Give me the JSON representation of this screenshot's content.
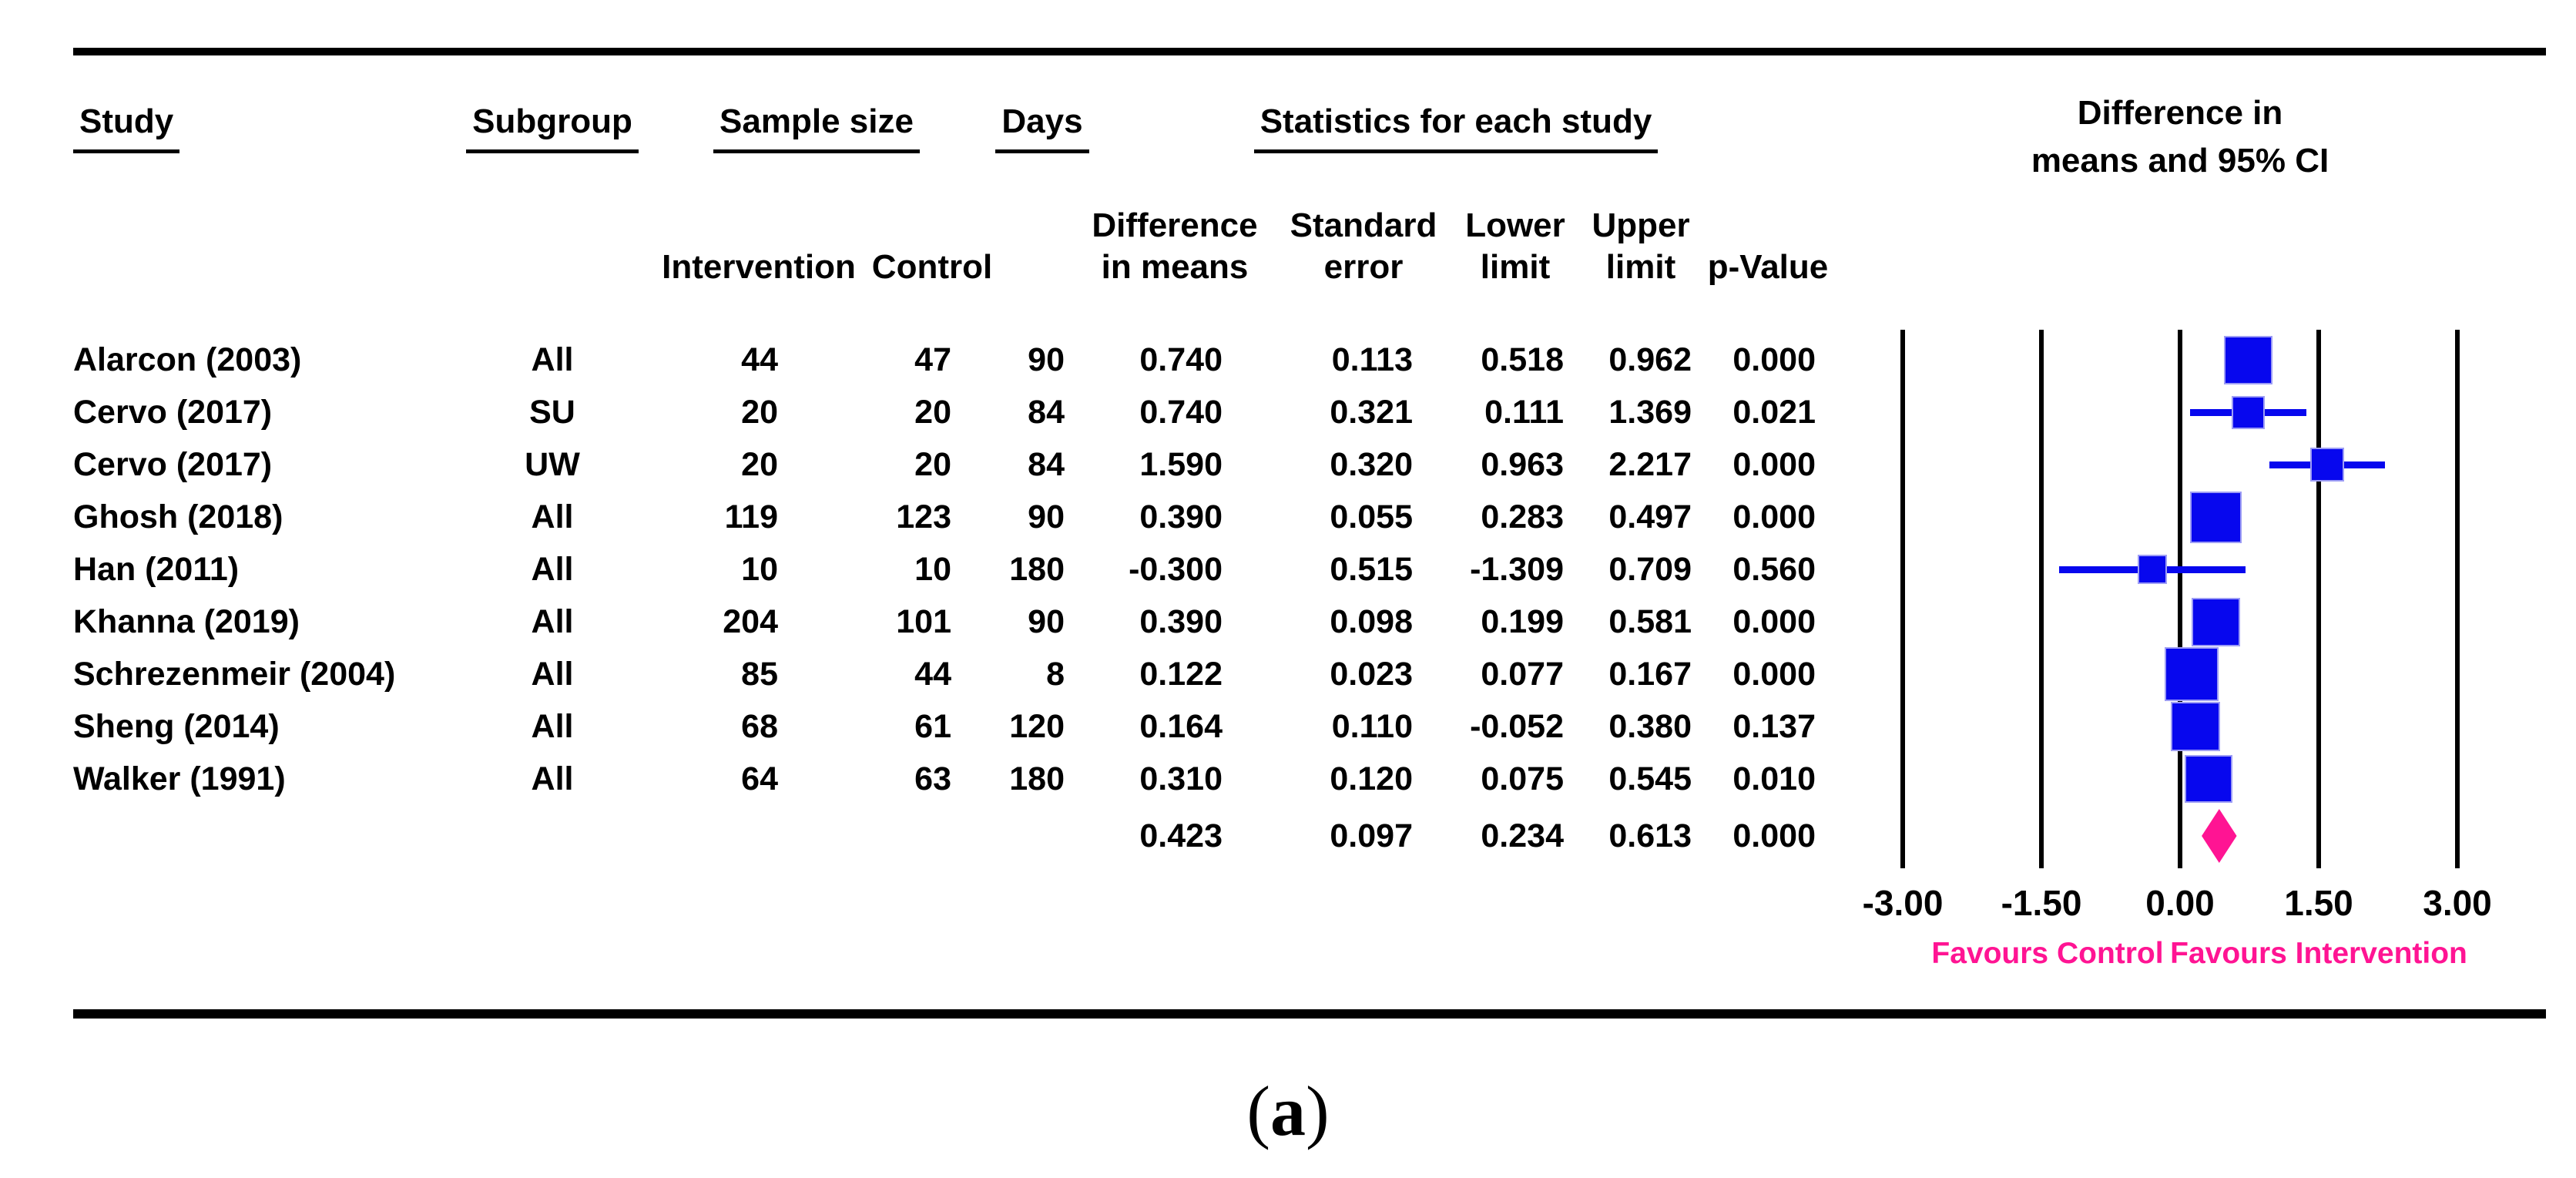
{
  "header": {
    "study": "Study",
    "subgroup": "Subgroup",
    "sample_size": "Sample size",
    "days": "Days",
    "statistics": "Statistics for each study",
    "plot_title_line1": "Difference in",
    "plot_title_line2": "means and 95% CI",
    "col_intervention": "Intervention",
    "col_control": "Control",
    "col_diff_line1": "Difference",
    "col_diff_line2": "in means",
    "col_se_line1": "Standard",
    "col_se_line2": "error",
    "col_lower_line1": "Lower",
    "col_lower_line2": "limit",
    "col_upper_line1": "Upper",
    "col_upper_line2": "limit",
    "col_p": "p-Value"
  },
  "chart_data": {
    "type": "forest",
    "title": "Difference in means and 95% CI",
    "x_axis": {
      "min": -3,
      "max": 3,
      "ticks": [
        {
          "label": "-3.00",
          "value": -3
        },
        {
          "label": "-1.50",
          "value": -1.5
        },
        {
          "label": "0.00",
          "value": 0
        },
        {
          "label": "1.50",
          "value": 1.5
        },
        {
          "label": "3.00",
          "value": 3
        }
      ]
    },
    "footer_left": "Favours Control",
    "footer_right": "Favours Intervention",
    "colors": {
      "marker": "#0707ee",
      "marker_edge": "#9d9df5",
      "summary": "#ff1493",
      "grid": "#000000"
    },
    "studies": [
      {
        "study": "Alarcon (2003)",
        "subgroup": "All",
        "n_intervention": "44",
        "n_control": "47",
        "days": "90",
        "diff": "0.740",
        "se": "0.113",
        "lower": "0.518",
        "upper": "0.962",
        "p": "0.000",
        "marker_size": 63
      },
      {
        "study": "Cervo (2017)",
        "subgroup": "SU",
        "n_intervention": "20",
        "n_control": "20",
        "days": "84",
        "diff": "0.740",
        "se": "0.321",
        "lower": "0.111",
        "upper": "1.369",
        "p": "0.021",
        "marker_size": 43
      },
      {
        "study": "Cervo (2017)",
        "subgroup": "UW",
        "n_intervention": "20",
        "n_control": "20",
        "days": "84",
        "diff": "1.590",
        "se": "0.320",
        "lower": "0.963",
        "upper": "2.217",
        "p": "0.000",
        "marker_size": 44
      },
      {
        "study": "Ghosh (2018)",
        "subgroup": "All",
        "n_intervention": "119",
        "n_control": "123",
        "days": "90",
        "diff": "0.390",
        "se": "0.055",
        "lower": "0.283",
        "upper": "0.497",
        "p": "0.000",
        "marker_size": 67
      },
      {
        "study": "Han (2011)",
        "subgroup": "All",
        "n_intervention": "10",
        "n_control": "10",
        "days": "180",
        "diff": "-0.300",
        "se": "0.515",
        "lower": "-1.309",
        "upper": "0.709",
        "p": "0.560",
        "marker_size": 38
      },
      {
        "study": "Khanna (2019)",
        "subgroup": "All",
        "n_intervention": "204",
        "n_control": "101",
        "days": "90",
        "diff": "0.390",
        "se": "0.098",
        "lower": "0.199",
        "upper": "0.581",
        "p": "0.000",
        "marker_size": 63
      },
      {
        "study": "Schrezenmeir (2004)",
        "subgroup": "All",
        "n_intervention": "85",
        "n_control": "44",
        "days": "8",
        "diff": "0.122",
        "se": "0.023",
        "lower": "0.077",
        "upper": "0.167",
        "p": "0.000",
        "marker_size": 70
      },
      {
        "study": "Sheng (2014)",
        "subgroup": "All",
        "n_intervention": "68",
        "n_control": "61",
        "days": "120",
        "diff": "0.164",
        "se": "0.110",
        "lower": "-0.052",
        "upper": "0.380",
        "p": "0.137",
        "marker_size": 64
      },
      {
        "study": "Walker (1991)",
        "subgroup": "All",
        "n_intervention": "64",
        "n_control": "63",
        "days": "180",
        "diff": "0.310",
        "se": "0.120",
        "lower": "0.075",
        "upper": "0.545",
        "p": "0.010",
        "marker_size": 62
      }
    ],
    "summary": {
      "diff": "0.423",
      "se": "0.097",
      "lower": "0.234",
      "upper": "0.613",
      "p": "0.000"
    }
  },
  "caption": {
    "open": "(",
    "letter": "a",
    "close": ")"
  }
}
